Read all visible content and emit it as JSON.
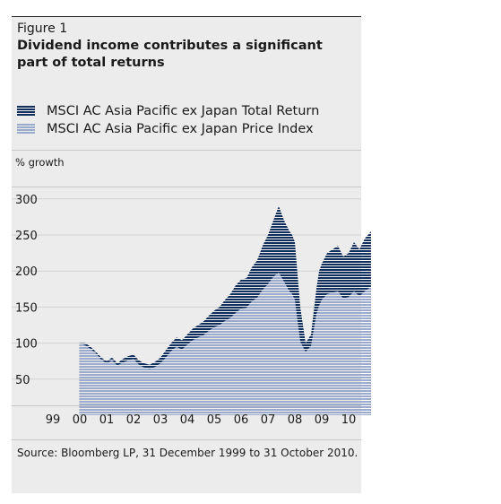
{
  "figure_label": "Figure 1",
  "title": "Dividend income contributes a significant part of total returns",
  "legend": [
    {
      "label": "MSCI AC Asia Pacific ex Japan Total Return",
      "color": "#0f2e5c"
    },
    {
      "label": "MSCI AC Asia Pacific ex Japan Price Index",
      "color": "#9aaacd"
    }
  ],
  "unit_label": "% growth",
  "source": "Source: Bloomberg LP, 31 December 1999 to 31 October 2010.",
  "chart_data": {
    "type": "area",
    "ylabel": "% growth",
    "ylim": [
      0,
      300
    ],
    "y_ticks": [
      50,
      100,
      150,
      200,
      250,
      300
    ],
    "x_ticks": [
      "99",
      "00",
      "01",
      "02",
      "03",
      "04",
      "05",
      "06",
      "07",
      "08",
      "09",
      "10"
    ],
    "x_tick_values": [
      1999.0,
      2000.0,
      2001.0,
      2002.0,
      2003.0,
      2004.0,
      2005.0,
      2006.0,
      2007.0,
      2008.0,
      2009.0,
      2010.0
    ],
    "x": [
      1999.99,
      2000.2,
      2000.4,
      2000.6,
      2000.8,
      2001.0,
      2001.2,
      2001.4,
      2001.6,
      2001.8,
      2002.0,
      2002.2,
      2002.4,
      2002.6,
      2002.8,
      2003.0,
      2003.2,
      2003.4,
      2003.6,
      2003.8,
      2004.0,
      2004.2,
      2004.4,
      2004.6,
      2004.8,
      2005.0,
      2005.2,
      2005.4,
      2005.6,
      2005.8,
      2006.0,
      2006.2,
      2006.4,
      2006.6,
      2006.8,
      2007.0,
      2007.2,
      2007.4,
      2007.6,
      2007.8,
      2007.9,
      2008.0,
      2008.2,
      2008.4,
      2008.6,
      2008.8,
      2008.9,
      2009.0,
      2009.2,
      2009.4,
      2009.6,
      2009.8,
      2010.0,
      2010.2,
      2010.4,
      2010.6,
      2010.83
    ],
    "series": [
      {
        "name": "MSCI AC Asia Pacific ex Japan Total Return",
        "values": [
          100,
          100,
          95,
          88,
          80,
          75,
          80,
          72,
          78,
          82,
          84,
          76,
          72,
          70,
          74,
          80,
          90,
          100,
          108,
          104,
          112,
          120,
          125,
          130,
          138,
          145,
          150,
          160,
          168,
          180,
          188,
          190,
          205,
          215,
          235,
          250,
          270,
          290,
          270,
          255,
          250,
          240,
          150,
          100,
          112,
          175,
          200,
          210,
          225,
          230,
          235,
          220,
          225,
          240,
          230,
          245,
          255
        ]
      },
      {
        "name": "MSCI AC Asia Pacific ex Japan Price Index",
        "values": [
          100,
          97,
          92,
          86,
          77,
          72,
          76,
          69,
          73,
          76,
          78,
          70,
          66,
          64,
          67,
          72,
          80,
          89,
          95,
          91,
          98,
          104,
          108,
          111,
          117,
          122,
          125,
          131,
          135,
          142,
          148,
          149,
          158,
          163,
          174,
          182,
          192,
          198,
          185,
          172,
          168,
          160,
          102,
          88,
          96,
          140,
          152,
          160,
          168,
          170,
          172,
          162,
          164,
          172,
          165,
          172,
          178
        ]
      }
    ],
    "legend_position": "top-left",
    "grid": true
  }
}
